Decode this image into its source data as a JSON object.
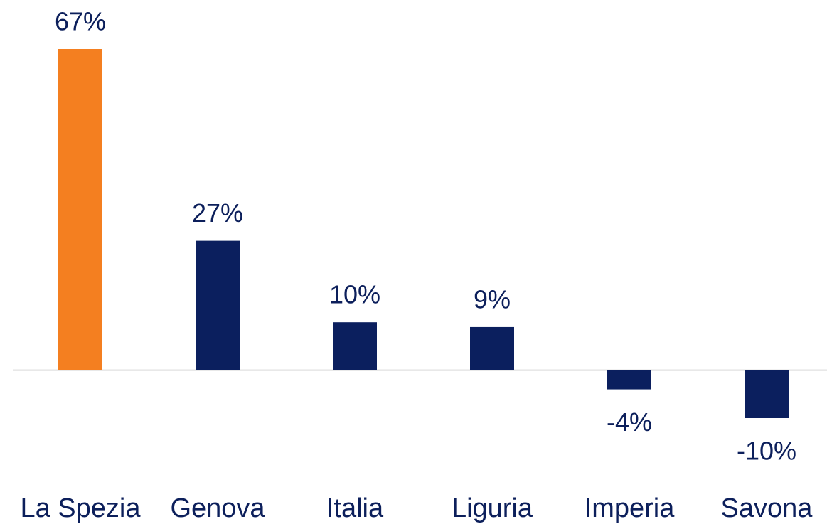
{
  "chart_data": {
    "type": "bar",
    "categories": [
      "La Spezia",
      "Genova",
      "Italia",
      "Liguria",
      "Imperia",
      "Savona"
    ],
    "values": [
      67,
      27,
      10,
      9,
      -4,
      -10
    ],
    "value_labels": [
      "67%",
      "27%",
      "10%",
      "9%",
      "-4%",
      "-10%"
    ],
    "colors": [
      "#f47f20",
      "#0b1f5e",
      "#0b1f5e",
      "#0b1f5e",
      "#0b1f5e",
      "#0b1f5e"
    ]
  }
}
